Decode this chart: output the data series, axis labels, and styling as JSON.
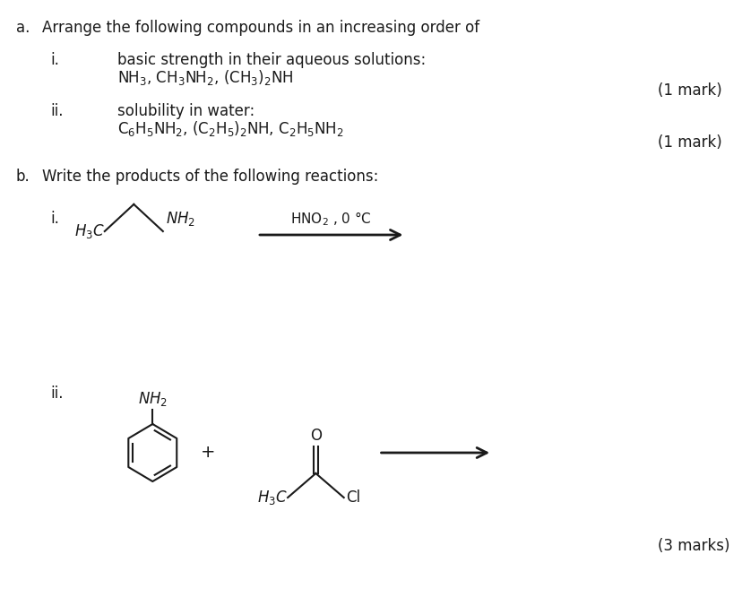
{
  "bg_color": "#ffffff",
  "text_color": "#1a1a1a",
  "fig_width": 8.29,
  "fig_height": 6.57,
  "dpi": 100,
  "part_a_label": "a.",
  "part_a_text": "Arrange the following compounds in an increasing order of",
  "part_b_label": "b.",
  "part_b_text": "Write the products of the following reactions:",
  "i_label": "i.",
  "ii_label": "ii.",
  "sub_i_line1": "basic strength in their aqueous solutions:",
  "sub_i_line2": "NH$_3$, CH$_3$NH$_2$, (CH$_3$)$_2$NH",
  "sub_ii_line1": "solubility in water:",
  "sub_ii_line2": "C$_6$H$_5$NH$_2$, (C$_2$H$_5$)$_2$NH, C$_2$H$_5$NH$_2$",
  "mark1": "(1 mark)",
  "mark2": "(1 mark)",
  "mark3": "(3 marks)",
  "hno2_label": "HNO$_2$ , 0 °C",
  "font_size_main": 12,
  "font_size_small": 11,
  "font_family": "DejaVu Sans"
}
